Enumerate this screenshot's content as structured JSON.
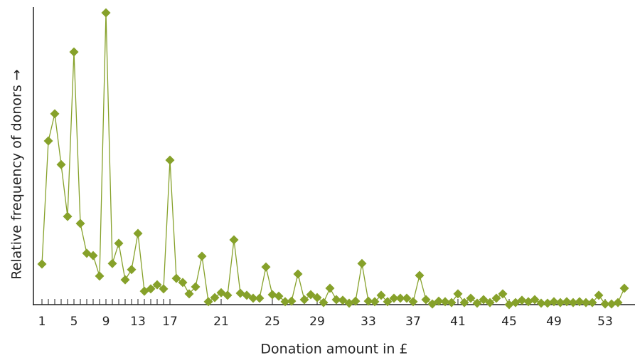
{
  "chart_data": {
    "type": "line",
    "x_label": "Donation amount in £",
    "y_label": "Relative frequency of donors →",
    "color": "#86a12a",
    "grid": false,
    "ylim": [
      0,
      100
    ],
    "categories": [
      "1",
      null,
      null,
      null,
      null,
      "5",
      null,
      null,
      null,
      null,
      "9",
      null,
      null,
      null,
      null,
      "13",
      null,
      null,
      null,
      null,
      "17",
      null,
      null,
      null,
      null,
      null,
      null,
      null,
      "21",
      null,
      null,
      null,
      null,
      null,
      null,
      null,
      "25",
      null,
      null,
      null,
      null,
      null,
      null,
      "29",
      null,
      null,
      null,
      null,
      null,
      null,
      null,
      "33",
      null,
      null,
      null,
      null,
      null,
      null,
      "37",
      null,
      null,
      null,
      null,
      null,
      null,
      "41",
      null,
      null,
      null,
      null,
      null,
      null,
      null,
      "45",
      null,
      null,
      null,
      null,
      null,
      null,
      "49",
      null,
      null,
      null,
      null,
      null,
      null,
      null,
      "53",
      null,
      null,
      null
    ],
    "values": [
      13.9,
      56.1,
      65.4,
      48.0,
      30.2,
      86.6,
      27.8,
      17.6,
      16.8,
      9.8,
      100,
      14.1,
      21.0,
      8.5,
      12.0,
      24.4,
      4.6,
      5.4,
      6.8,
      5.4,
      49.5,
      9.0,
      7.6,
      3.7,
      6.1,
      16.6,
      1.0,
      2.4,
      4.1,
      3.2,
      22.2,
      3.9,
      3.2,
      2.2,
      2.2,
      12.9,
      3.4,
      2.9,
      1.0,
      1.2,
      10.5,
      1.7,
      3.4,
      2.4,
      0.7,
      5.6,
      1.7,
      1.5,
      0.5,
      1.2,
      14.1,
      1.2,
      1.0,
      3.2,
      1.0,
      2.2,
      2.2,
      2.2,
      1.0,
      10.0,
      1.7,
      0.2,
      1.2,
      1.0,
      0.7,
      3.7,
      0.7,
      2.2,
      0.5,
      1.7,
      0.7,
      2.2,
      3.7,
      0,
      0.7,
      1.5,
      1.0,
      1.7,
      0.5,
      0.5,
      1.0,
      0.7,
      1.0,
      0.7,
      1.0,
      0.7,
      0.7,
      3.2,
      0.2,
      0.2,
      0.7,
      5.6
    ]
  }
}
